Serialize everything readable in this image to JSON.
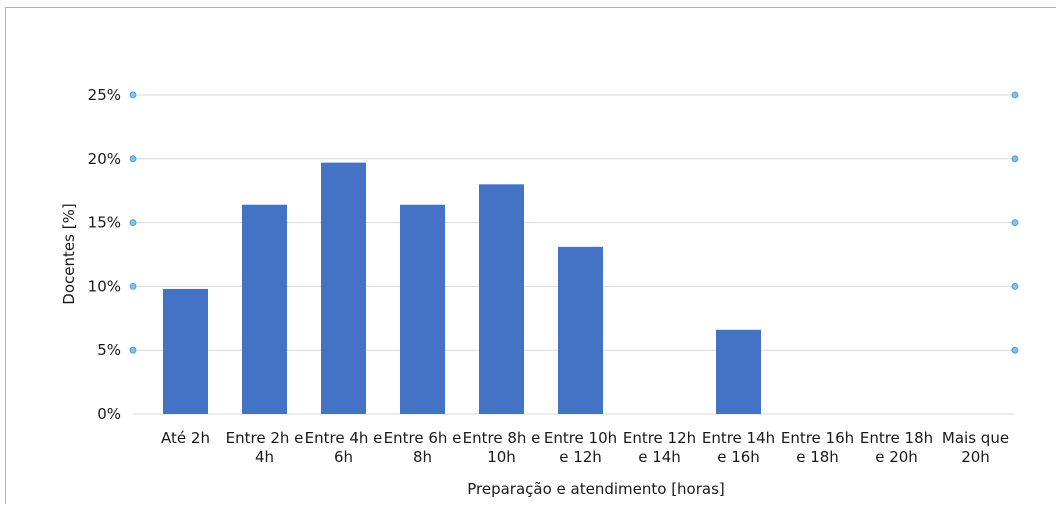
{
  "chart_data": {
    "type": "bar",
    "xlabel": "Preparação e atendimento [horas]",
    "ylabel": "Docentes [%]",
    "ylim": [
      0,
      25
    ],
    "yticks": [
      "0%",
      "5%",
      "10%",
      "15%",
      "20%",
      "25%"
    ],
    "ytick_values": [
      0,
      5,
      10,
      15,
      20,
      25
    ],
    "grid": true,
    "categories": [
      [
        "Até 2h"
      ],
      [
        "Entre 2h e",
        "4h"
      ],
      [
        "Entre 4h e",
        "6h"
      ],
      [
        "Entre 6h e",
        "8h"
      ],
      [
        "Entre 8h e",
        "10h"
      ],
      [
        "Entre 10h",
        "e 12h"
      ],
      [
        "Entre 12h",
        "e 14h"
      ],
      [
        "Entre 14h",
        "e 16h"
      ],
      [
        "Entre 16h",
        "e 18h"
      ],
      [
        "Entre 18h",
        "e 20h"
      ],
      [
        "Mais que",
        "20h"
      ]
    ],
    "values": [
      9.8,
      16.4,
      19.7,
      16.4,
      18.0,
      13.1,
      0,
      6.6,
      0,
      0,
      0
    ],
    "bar_color": "#4472c4",
    "gridline_color": "#d9d9d9",
    "marker_color": "#7fc2f2"
  }
}
